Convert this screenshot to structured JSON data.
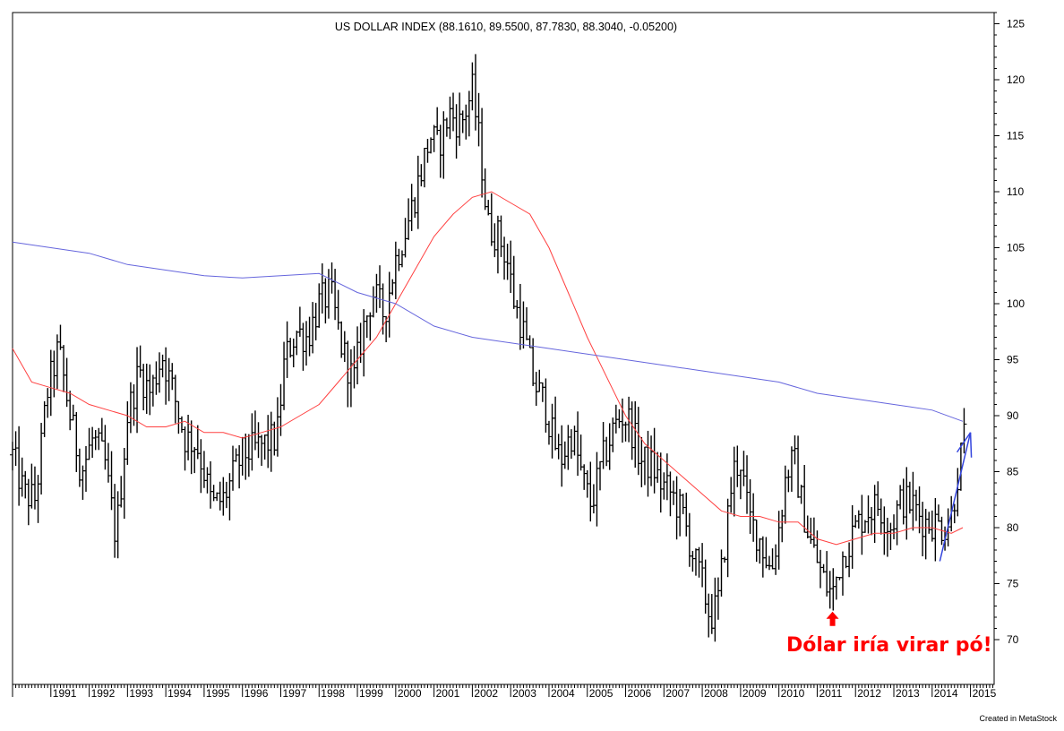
{
  "chart_data": {
    "type": "ohlc",
    "title": "US DOLLAR INDEX (88.1610, 89.5500, 87.7830, 88.3040, -0.05200)",
    "x_tick_labels": [
      "1991",
      "1992",
      "1993",
      "1994",
      "1995",
      "1996",
      "1997",
      "1998",
      "1999",
      "2000",
      "2001",
      "2002",
      "2003",
      "2004",
      "2005",
      "2006",
      "2007",
      "2008",
      "2009",
      "2010",
      "2011",
      "2012",
      "2013",
      "2014",
      "2015"
    ],
    "y_tick_labels": [
      "70",
      "75",
      "80",
      "85",
      "90",
      "95",
      "100",
      "105",
      "110",
      "115",
      "120",
      "125"
    ],
    "ylim": [
      66,
      126
    ],
    "xlim": [
      1990.0,
      2015.15
    ],
    "grid": false,
    "annotation": {
      "text": "Dólar iría virar pó!",
      "color": "#ff0000",
      "arrow": "up",
      "x": 2011.4,
      "y": 72.5
    },
    "trend_arrow": {
      "color": "#3344dd",
      "from": [
        2014.2,
        77
      ],
      "to": [
        2015.0,
        88.5
      ]
    },
    "credit": "Created in MetaStock",
    "series": [
      {
        "color": "#000000",
        "points": [
          [
            1990.0,
            86.5
          ],
          [
            1990.3,
            83.0
          ],
          [
            1990.6,
            82.5
          ],
          [
            1990.9,
            92.0
          ],
          [
            1991.2,
            96.0
          ],
          [
            1991.5,
            90.0
          ],
          [
            1991.8,
            85.0
          ],
          [
            1992.1,
            88.0
          ],
          [
            1992.4,
            86.0
          ],
          [
            1992.7,
            79.0
          ],
          [
            1993.0,
            90.0
          ],
          [
            1993.3,
            94.0
          ],
          [
            1993.6,
            92.0
          ],
          [
            1993.9,
            95.5
          ],
          [
            1994.2,
            92.0
          ],
          [
            1994.5,
            88.0
          ],
          [
            1994.8,
            87.5
          ],
          [
            1995.0,
            85.0
          ],
          [
            1995.2,
            82.0
          ],
          [
            1995.5,
            82.5
          ],
          [
            1995.8,
            85.0
          ],
          [
            1996.0,
            86.5
          ],
          [
            1996.3,
            87.0
          ],
          [
            1996.6,
            87.5
          ],
          [
            1996.9,
            88.0
          ],
          [
            1997.1,
            95.0
          ],
          [
            1997.4,
            97.5
          ],
          [
            1997.7,
            97.0
          ],
          [
            1998.0,
            100.0
          ],
          [
            1998.3,
            101.0
          ],
          [
            1998.6,
            96.0
          ],
          [
            1998.9,
            93.0
          ],
          [
            1999.1,
            97.0
          ],
          [
            1999.4,
            101.0
          ],
          [
            1999.7,
            99.0
          ],
          [
            2000.0,
            104.0
          ],
          [
            2000.3,
            107.0
          ],
          [
            2000.6,
            111.0
          ],
          [
            2000.9,
            115.0
          ],
          [
            2001.1,
            114.0
          ],
          [
            2001.4,
            117.0
          ],
          [
            2001.7,
            116.0
          ],
          [
            2002.0,
            119.0
          ],
          [
            2002.2,
            114.0
          ],
          [
            2002.4,
            107.0
          ],
          [
            2002.7,
            106.0
          ],
          [
            2002.9,
            104.0
          ],
          [
            2003.1,
            100.0
          ],
          [
            2003.3,
            98.0
          ],
          [
            2003.6,
            93.0
          ],
          [
            2003.9,
            91.0
          ],
          [
            2004.1,
            88.0
          ],
          [
            2004.3,
            86.0
          ],
          [
            2004.6,
            88.5
          ],
          [
            2004.9,
            84.0
          ],
          [
            2005.1,
            82.0
          ],
          [
            2005.4,
            86.0
          ],
          [
            2005.7,
            89.0
          ],
          [
            2005.9,
            90.0
          ],
          [
            2006.1,
            89.5
          ],
          [
            2006.4,
            86.0
          ],
          [
            2006.7,
            85.5
          ],
          [
            2006.9,
            84.0
          ],
          [
            2007.2,
            83.0
          ],
          [
            2007.5,
            81.0
          ],
          [
            2007.8,
            77.0
          ],
          [
            2008.0,
            75.0
          ],
          [
            2008.2,
            72.0
          ],
          [
            2008.4,
            73.0
          ],
          [
            2008.6,
            79.0
          ],
          [
            2008.8,
            85.0
          ],
          [
            2009.0,
            86.0
          ],
          [
            2009.2,
            81.0
          ],
          [
            2009.5,
            79.0
          ],
          [
            2009.8,
            76.0
          ],
          [
            2010.0,
            80.0
          ],
          [
            2010.2,
            85.0
          ],
          [
            2010.4,
            86.0
          ],
          [
            2010.6,
            82.0
          ],
          [
            2010.8,
            79.0
          ],
          [
            2011.0,
            77.0
          ],
          [
            2011.2,
            75.0
          ],
          [
            2011.4,
            74.0
          ],
          [
            2011.6,
            77.0
          ],
          [
            2011.8,
            78.5
          ],
          [
            2012.0,
            80.0
          ],
          [
            2012.3,
            81.5
          ],
          [
            2012.6,
            82.0
          ],
          [
            2012.9,
            80.0
          ],
          [
            2013.2,
            82.5
          ],
          [
            2013.5,
            82.0
          ],
          [
            2013.8,
            80.5
          ],
          [
            2014.0,
            80.5
          ],
          [
            2014.3,
            80.0
          ],
          [
            2014.5,
            81.0
          ],
          [
            2014.7,
            85.5
          ],
          [
            2014.85,
            88.3
          ]
        ]
      },
      {
        "color": "#ff4040",
        "points": [
          [
            1990.0,
            96.0
          ],
          [
            1990.5,
            93.0
          ],
          [
            1991.0,
            92.5
          ],
          [
            1991.5,
            92.0
          ],
          [
            1992.0,
            91.0
          ],
          [
            1992.5,
            90.5
          ],
          [
            1993.0,
            90.0
          ],
          [
            1993.5,
            89.0
          ],
          [
            1994.0,
            89.0
          ],
          [
            1994.5,
            89.5
          ],
          [
            1995.0,
            88.5
          ],
          [
            1995.5,
            88.5
          ],
          [
            1996.0,
            88.0
          ],
          [
            1996.5,
            88.5
          ],
          [
            1997.0,
            89.0
          ],
          [
            1997.5,
            90.0
          ],
          [
            1998.0,
            91.0
          ],
          [
            1998.5,
            93.0
          ],
          [
            1999.0,
            95.0
          ],
          [
            1999.5,
            97.0
          ],
          [
            2000.0,
            100.0
          ],
          [
            2000.5,
            103.0
          ],
          [
            2001.0,
            106.0
          ],
          [
            2001.5,
            108.0
          ],
          [
            2002.0,
            109.5
          ],
          [
            2002.5,
            110.0
          ],
          [
            2003.0,
            109.0
          ],
          [
            2003.5,
            108.0
          ],
          [
            2004.0,
            105.0
          ],
          [
            2004.5,
            101.0
          ],
          [
            2005.0,
            97.0
          ],
          [
            2005.5,
            93.5
          ],
          [
            2006.0,
            90.0
          ],
          [
            2006.5,
            87.5
          ],
          [
            2007.0,
            86.0
          ],
          [
            2007.5,
            84.5
          ],
          [
            2008.0,
            83.0
          ],
          [
            2008.5,
            81.5
          ],
          [
            2009.0,
            81.0
          ],
          [
            2009.5,
            81.0
          ],
          [
            2010.0,
            80.5
          ],
          [
            2010.5,
            80.5
          ],
          [
            2011.0,
            79.0
          ],
          [
            2011.5,
            78.5
          ],
          [
            2012.0,
            79.0
          ],
          [
            2012.5,
            79.5
          ],
          [
            2013.0,
            79.5
          ],
          [
            2013.5,
            80.0
          ],
          [
            2014.0,
            80.0
          ],
          [
            2014.5,
            79.5
          ],
          [
            2014.8,
            80.0
          ]
        ]
      },
      {
        "color": "#6666dd",
        "points": [
          [
            1990.0,
            105.5
          ],
          [
            1991.0,
            105.0
          ],
          [
            1992.0,
            104.5
          ],
          [
            1993.0,
            103.5
          ],
          [
            1994.0,
            103.0
          ],
          [
            1995.0,
            102.5
          ],
          [
            1996.0,
            102.3
          ],
          [
            1997.0,
            102.5
          ],
          [
            1998.0,
            102.7
          ],
          [
            1999.0,
            101.0
          ],
          [
            2000.0,
            100.0
          ],
          [
            2001.0,
            98.0
          ],
          [
            2002.0,
            97.0
          ],
          [
            2003.0,
            96.5
          ],
          [
            2004.0,
            96.0
          ],
          [
            2005.0,
            95.5
          ],
          [
            2006.0,
            95.0
          ],
          [
            2007.0,
            94.5
          ],
          [
            2008.0,
            94.0
          ],
          [
            2009.0,
            93.5
          ],
          [
            2010.0,
            93.0
          ],
          [
            2011.0,
            92.0
          ],
          [
            2012.0,
            91.5
          ],
          [
            2013.0,
            91.0
          ],
          [
            2014.0,
            90.5
          ],
          [
            2014.8,
            89.5
          ]
        ]
      }
    ]
  }
}
